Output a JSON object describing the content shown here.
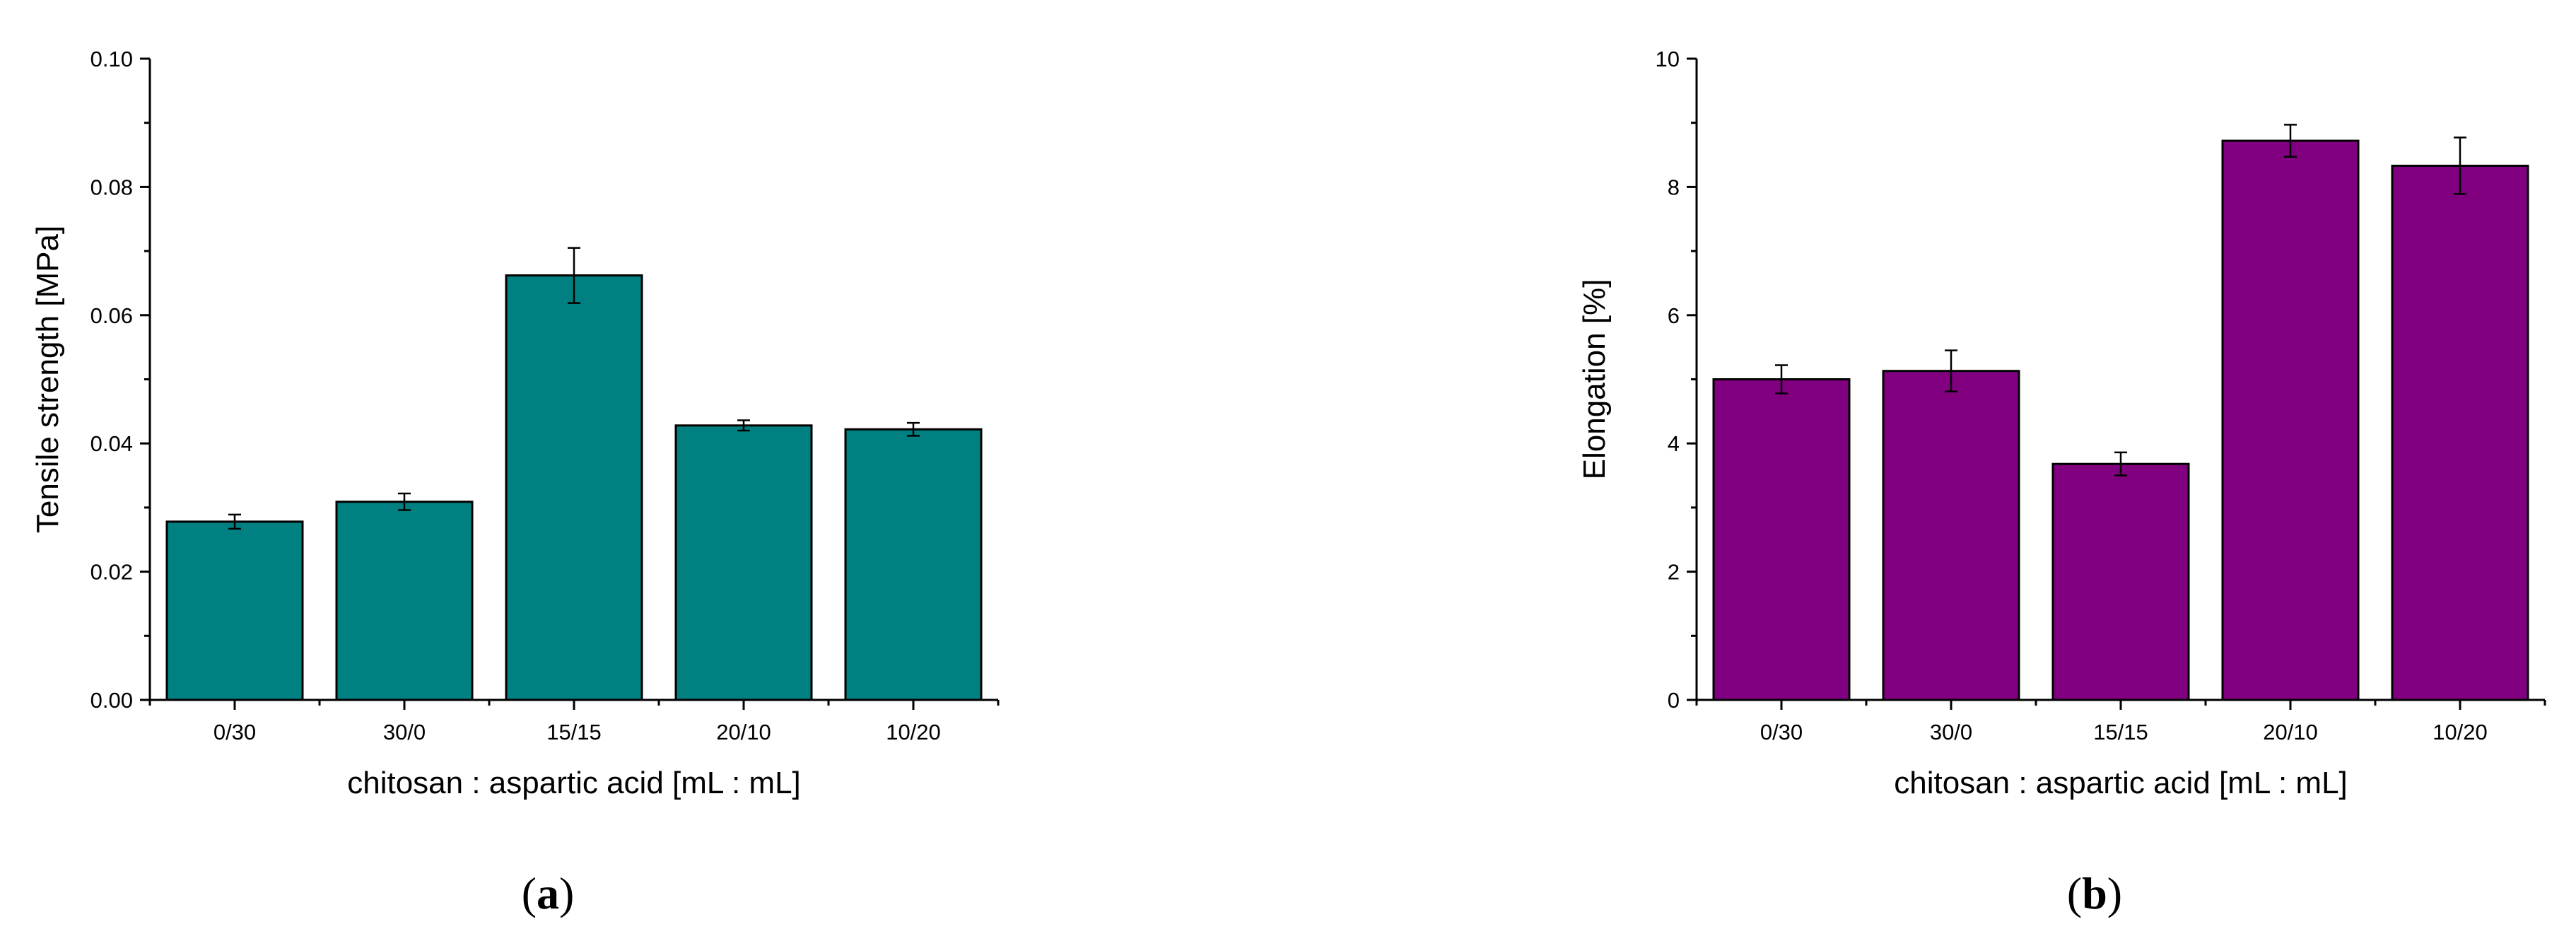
{
  "chart_data": [
    {
      "type": "bar",
      "panel": "a",
      "categories": [
        "0/30",
        "30/0",
        "15/15",
        "20/10",
        "10/20"
      ],
      "values": [
        0.0278,
        0.0309,
        0.0662,
        0.0428,
        0.0422
      ],
      "errors": [
        0.0011,
        0.0013,
        0.0043,
        0.0008,
        0.001
      ],
      "xlabel": "chitosan : aspartic acid [mL : mL]",
      "ylabel": "Tensile strength [MPa]",
      "ylim": [
        0,
        0.1
      ],
      "yticks": [
        "0.00",
        "0.02",
        "0.04",
        "0.06",
        "0.08",
        "0.10"
      ],
      "bar_color": "#008080",
      "grid": false
    },
    {
      "type": "bar",
      "panel": "b",
      "categories": [
        "0/30",
        "30/0",
        "15/15",
        "20/10",
        "10/20"
      ],
      "values": [
        5.0,
        5.13,
        3.68,
        8.72,
        8.33
      ],
      "errors": [
        0.22,
        0.32,
        0.18,
        0.25,
        0.44
      ],
      "xlabel": "chitosan : aspartic acid [mL : mL]",
      "ylabel": "Elongation [%]",
      "ylim": [
        0,
        10
      ],
      "yticks": [
        "0",
        "2",
        "4",
        "6",
        "8",
        "10"
      ],
      "bar_color": "#800080",
      "grid": false
    }
  ],
  "panel_labels": [
    "a",
    "b"
  ]
}
